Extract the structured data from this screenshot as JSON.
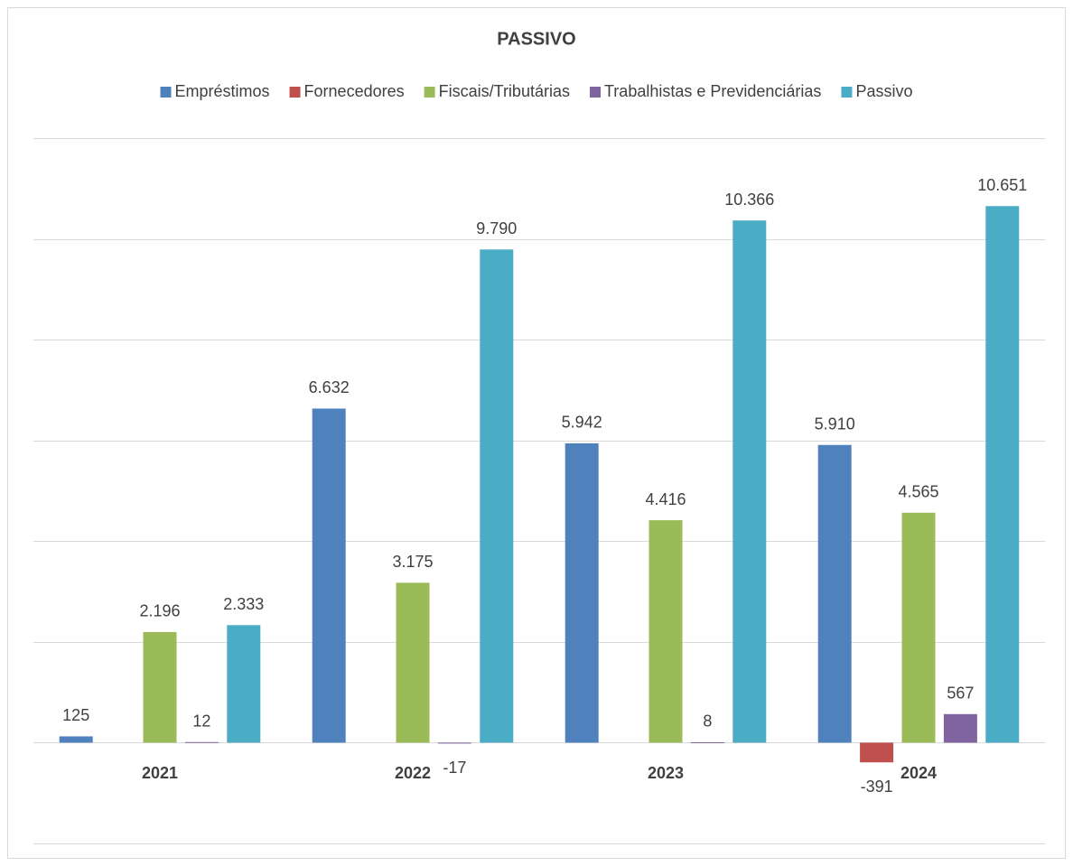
{
  "chart_data": {
    "type": "bar",
    "title": "PASSIVO",
    "categories": [
      "2021",
      "2022",
      "2023",
      "2024"
    ],
    "series": [
      {
        "name": "Empréstimos",
        "color": "#4f81bd",
        "values": [
          125,
          6632,
          5942,
          5910
        ],
        "value_labels": [
          "125",
          "6.632",
          "5.942",
          "5.910"
        ]
      },
      {
        "name": "Fornecedores",
        "color": "#c0504d",
        "values": [
          null,
          null,
          null,
          -391
        ],
        "value_labels": [
          null,
          null,
          null,
          "-391"
        ]
      },
      {
        "name": "Fiscais/Tributárias",
        "color": "#9bbb59",
        "values": [
          2196,
          3175,
          4416,
          4565
        ],
        "value_labels": [
          "2.196",
          "3.175",
          "4.416",
          "4.565"
        ]
      },
      {
        "name": "Trabalhistas e Previdenciárias",
        "color": "#8064a2",
        "values": [
          12,
          -17,
          8,
          567
        ],
        "value_labels": [
          "12",
          "-17",
          "8",
          "567"
        ]
      },
      {
        "name": "Passivo",
        "color": "#4bacc6",
        "values": [
          2333,
          9790,
          10366,
          10651
        ],
        "value_labels": [
          "2.333",
          "9.790",
          "10.366",
          "10.651"
        ]
      }
    ],
    "ylim": [
      -2000,
      12000
    ],
    "yticks": [
      -2000,
      0,
      2000,
      4000,
      6000,
      8000,
      10000,
      12000
    ],
    "grid": true,
    "legend": "top"
  }
}
